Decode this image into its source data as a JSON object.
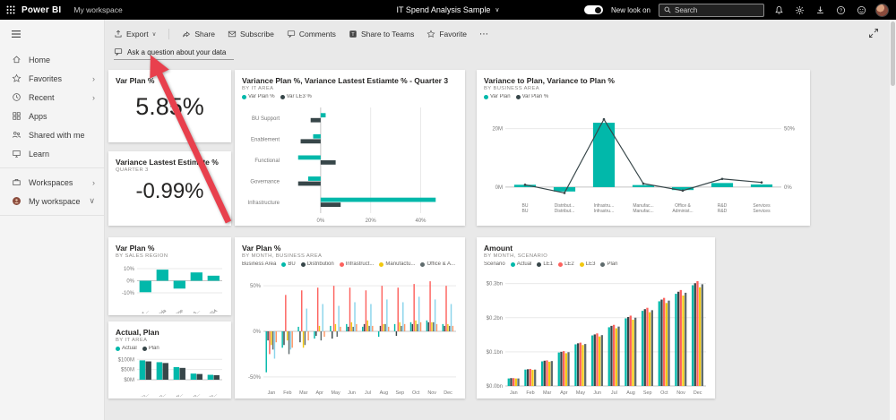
{
  "topbar": {
    "app_name": "Power BI",
    "workspace": "My workspace",
    "title": "IT Spend Analysis Sample",
    "new_look": "New look on",
    "search_placeholder": "Search"
  },
  "sidebar": {
    "items": [
      {
        "label": "Home"
      },
      {
        "label": "Favorites",
        "chevron": "›"
      },
      {
        "label": "Recent",
        "chevron": "›"
      },
      {
        "label": "Apps"
      },
      {
        "label": "Shared with me"
      },
      {
        "label": "Learn"
      },
      {
        "label": "Workspaces",
        "chevron": "›"
      },
      {
        "label": "My workspace",
        "chevron": "∨"
      }
    ]
  },
  "toolbar": {
    "export": "Export",
    "share": "Share",
    "subscribe": "Subscribe",
    "comments": "Comments",
    "share_to_teams": "Share to Teams",
    "favorite": "Favorite",
    "more": "⋯"
  },
  "qa": {
    "placeholder": "Ask a question about your data"
  },
  "colors": {
    "teal": "#01B8AA",
    "dark": "#374649",
    "red": "#FD625E",
    "yellow": "#F2C80F",
    "gray": "#5F6B6D",
    "lightblue": "#8AD4EB",
    "orange": "#FE9666",
    "accent_arrow": "#e8404d"
  },
  "tiles": {
    "kpi_var_plan": {
      "title": "Var Plan %",
      "value": "5.85%"
    },
    "kpi_var_le": {
      "title": "Variance Lastest Estimate %",
      "subtitle": "QUARTER 3",
      "value": "-0.99%"
    },
    "it_variance": {
      "title": "Variance Plan %, Variance Lastest Estiamte % - Quarter 3",
      "subtitle": "BY IT AREA",
      "chart_data": {
        "type": "barh",
        "categories": [
          "BU Support",
          "Enablement",
          "Functional",
          "Governance",
          "Infrastructure"
        ],
        "series": [
          {
            "name": "Var Plan %",
            "color": "#01B8AA",
            "values": [
              2,
              -3,
              -9,
              -5,
              46
            ]
          },
          {
            "name": "Var LE3 %",
            "color": "#374649",
            "values": [
              -4,
              -8,
              6,
              -9,
              8
            ]
          }
        ],
        "xlim": [
          -15,
          52
        ],
        "xticks": [
          {
            "v": 0,
            "label": "0%"
          },
          {
            "v": 20,
            "label": "20%"
          },
          {
            "v": 40,
            "label": "40%"
          }
        ]
      }
    },
    "business_variance": {
      "title": "Variance to Plan, Variance to Plan %",
      "subtitle": "BY BUSINESS AREA",
      "chart_data": {
        "type": "combo",
        "categories": [
          "BU\nBU",
          "Distribut...\nDistribut...",
          "Infrastru...\nInfrastru...",
          "Manufac...\nManufac...",
          "Office &\nAdminist...",
          "R&D\nR&D",
          "Services\nServices"
        ],
        "series": [
          {
            "name": "Var Plan",
            "color": "#01B8AA",
            "values": [
              0.8,
              -1.5,
              22,
              0.7,
              -1.0,
              1.4,
              0.9
            ]
          },
          {
            "name": "Var Plan %",
            "color": "#374649",
            "values": [
              2,
              -5,
              58,
              3,
              -3,
              7,
              4
            ]
          }
        ],
        "ylim": [
          -4,
          26
        ],
        "yticks": [
          {
            "v": 0,
            "label": "0M"
          },
          {
            "v": 20,
            "label": "20M"
          }
        ],
        "y2lim": [
          -10,
          65
        ],
        "y2ticks": [
          {
            "v": 0,
            "label": "0%"
          },
          {
            "v": 50,
            "label": "50%"
          }
        ]
      }
    },
    "sales_region": {
      "title": "Var Plan %",
      "subtitle": "BY SALES REGION",
      "chart_data": {
        "type": "column",
        "legend": false,
        "rotate": true,
        "categories": [
          "Aus and ...",
          "Canada",
          "Europe",
          "Latin A...",
          "USA"
        ],
        "series": [
          {
            "name": "Var Plan %",
            "color": "#01B8AA",
            "values": [
              -9.5,
              9.2,
              -6.5,
              6.9,
              4.2
            ]
          }
        ],
        "ylim": [
          -13,
          13
        ],
        "yticks": [
          {
            "v": -10,
            "label": "-10%"
          },
          {
            "v": 0,
            "label": "0%"
          },
          {
            "v": 10,
            "label": "10%"
          }
        ]
      }
    },
    "actual_plan": {
      "title": "Actual, Plan",
      "subtitle": "BY IT AREA",
      "chart_data": {
        "type": "column",
        "rotate": true,
        "categories": [
          "Functio...",
          "BU Sup...",
          "Infrastr...",
          "Govern...",
          "Enable..."
        ],
        "series": [
          {
            "name": "Actual",
            "color": "#01B8AA",
            "values": [
              95,
              86,
              62,
              30,
              24
            ]
          },
          {
            "name": "Plan",
            "color": "#374649",
            "values": [
              90,
              82,
              58,
              28,
              22
            ]
          }
        ],
        "ylim": [
          0,
          110
        ],
        "yticks": [
          {
            "v": 0,
            "label": "$0M"
          },
          {
            "v": 50,
            "label": "$50M"
          },
          {
            "v": 100,
            "label": "$100M"
          }
        ]
      }
    },
    "month_business": {
      "title": "Var Plan %",
      "subtitle": "BY MONTH, BUSINESS AREA",
      "chart_data": {
        "type": "column",
        "legend_title": "Business Area",
        "categories": [
          "Jan",
          "Feb",
          "Mar",
          "Apr",
          "May",
          "Jun",
          "Jul",
          "Aug",
          "Sep",
          "Oct",
          "Nov",
          "Dec"
        ],
        "series": [
          {
            "name": "BU",
            "color": "#01B8AA",
            "values": [
              -45,
              -18,
              5,
              -8,
              6,
              8,
              5,
              -6,
              8,
              10,
              12,
              8
            ]
          },
          {
            "name": "Distribution",
            "color": "#374649",
            "values": [
              -10,
              -15,
              -12,
              -5,
              -8,
              5,
              8,
              6,
              -5,
              8,
              10,
              6
            ]
          },
          {
            "name": "Infrastruct...",
            "color": "#FD625E",
            "values": [
              -25,
              40,
              45,
              48,
              50,
              48,
              45,
              50,
              48,
              52,
              55,
              50
            ]
          },
          {
            "name": "Manufactu...",
            "color": "#F2C80F",
            "values": [
              -15,
              -10,
              -18,
              6,
              8,
              10,
              12,
              8,
              10,
              12,
              10,
              8
            ]
          },
          {
            "name": "Office & A...",
            "color": "#5F6B6D",
            "values": [
              -20,
              -25,
              -15,
              -10,
              -6,
              5,
              6,
              8,
              6,
              8,
              10,
              6
            ]
          },
          {
            "name": "R&D",
            "color": "#8AD4EB",
            "values": [
              -30,
              -20,
              25,
              30,
              28,
              32,
              30,
              35,
              32,
              38,
              35,
              30
            ]
          },
          {
            "name": "Services",
            "color": "#FE9666",
            "values": [
              -12,
              -18,
              -10,
              -6,
              5,
              8,
              6,
              5,
              8,
              10,
              8,
              6
            ]
          }
        ],
        "ylim": [
          -60,
          60
        ],
        "yticks": [
          {
            "v": -50,
            "label": "-50%"
          },
          {
            "v": 0,
            "label": "0%"
          },
          {
            "v": 50,
            "label": "50%"
          }
        ]
      }
    },
    "month_scenario": {
      "title": "Amount",
      "subtitle": "BY MONTH, SCENARIO",
      "chart_data": {
        "type": "column",
        "legend_title": "Scenario",
        "categories": [
          "Jan",
          "Feb",
          "Mar",
          "Apr",
          "May",
          "Jun",
          "Jul",
          "Aug",
          "Sep",
          "Oct",
          "Nov",
          "Dec"
        ],
        "series": [
          {
            "name": "Actual",
            "color": "#01B8AA",
            "values": [
              0.022,
              0.048,
              0.072,
              0.098,
              0.122,
              0.148,
              0.172,
              0.198,
              0.22,
              0.248,
              0.27,
              0.295
            ]
          },
          {
            "name": "LE1",
            "color": "#374649",
            "values": [
              0.023,
              0.049,
              0.074,
              0.1,
              0.125,
              0.151,
              0.176,
              0.202,
              0.225,
              0.253,
              0.276,
              0.301
            ]
          },
          {
            "name": "LE2",
            "color": "#FD625E",
            "values": [
              0.023,
              0.05,
              0.075,
              0.102,
              0.127,
              0.154,
              0.179,
              0.206,
              0.229,
              0.258,
              0.281,
              0.307
            ]
          },
          {
            "name": "LE3",
            "color": "#F2C80F",
            "values": [
              0.022,
              0.047,
              0.071,
              0.096,
              0.12,
              0.145,
              0.169,
              0.194,
              0.216,
              0.243,
              0.265,
              0.289
            ]
          },
          {
            "name": "Plan",
            "color": "#5F6B6D",
            "values": [
              0.022,
              0.048,
              0.073,
              0.099,
              0.123,
              0.149,
              0.174,
              0.2,
              0.222,
              0.25,
              0.273,
              0.298
            ]
          }
        ],
        "ylim": [
          0,
          0.32
        ],
        "yticks": [
          {
            "v": 0,
            "label": "$0.0bn"
          },
          {
            "v": 0.1,
            "label": "$0.1bn"
          },
          {
            "v": 0.2,
            "label": "$0.2bn"
          },
          {
            "v": 0.3,
            "label": "$0.3bn"
          }
        ]
      }
    }
  }
}
